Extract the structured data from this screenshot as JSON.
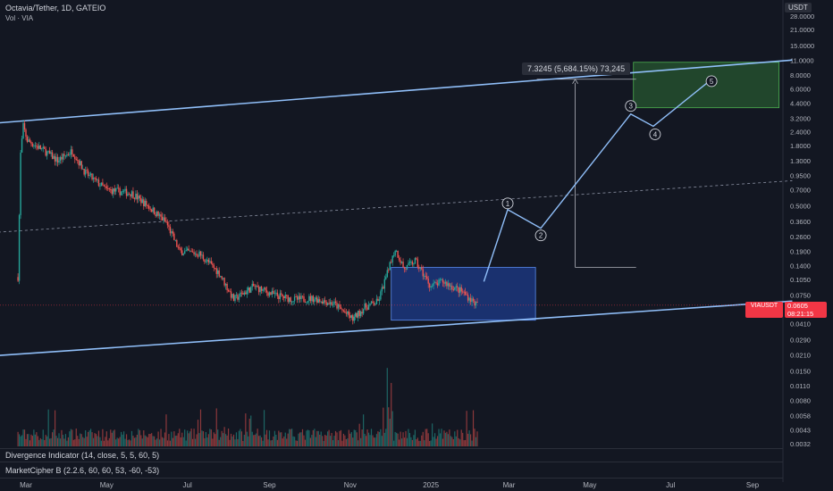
{
  "header": {
    "symbol": "Octavia/Tether, 1D, GATEIO",
    "volume": "Vol · VIA"
  },
  "currency_badge": "USDT",
  "last_price": {
    "symbol": "VIAUSDT",
    "price": "0.0605",
    "countdown": "08:21:15",
    "color": "#f23645"
  },
  "colors": {
    "up": "#26a69a",
    "down": "#ef5350",
    "channel": "#90bff9",
    "projection": "#4a8fe0"
  },
  "target_label": "7.3245 (5,684.15%) 73,245",
  "indicators": [
    "Divergence Indicator (14, close, 5, 5, 60, 5)",
    "MarketCipher B (2.2.6, 60, 60, 53, -60, -53)"
  ],
  "chart_data": {
    "type": "candlestick",
    "title": "Octavia/Tether, 1D, GATEIO",
    "y_scale": "log",
    "y_ticks": [
      "28.0000",
      "21.0000",
      "15.0000",
      "11.0000",
      "8.0000",
      "6.0000",
      "4.4000",
      "3.2000",
      "2.4000",
      "1.8000",
      "1.3000",
      "0.9500",
      "0.7000",
      "0.5000",
      "0.3600",
      "0.2600",
      "0.1900",
      "0.1400",
      "0.1050",
      "0.0750",
      "0.0560",
      "0.0410",
      "0.0290",
      "0.0210",
      "0.0150",
      "0.0110",
      "0.0080",
      "0.0058",
      "0.0043",
      "0.0032"
    ],
    "x_ticks": [
      "Mar",
      "May",
      "Jul",
      "Sep",
      "Nov",
      "2025",
      "Mar",
      "May",
      "Jul",
      "Sep"
    ],
    "price_path": [
      [
        "2024-02-24",
        0.11
      ],
      [
        "2024-02-26",
        1.5
      ],
      [
        "2024-02-28",
        2.7
      ],
      [
        "2024-03-02",
        2.0
      ],
      [
        "2024-03-15",
        1.6
      ],
      [
        "2024-03-25",
        1.3
      ],
      [
        "2024-04-05",
        1.6
      ],
      [
        "2024-04-15",
        1.0
      ],
      [
        "2024-05-01",
        0.7
      ],
      [
        "2024-05-20",
        0.65
      ],
      [
        "2024-06-01",
        0.5
      ],
      [
        "2024-06-15",
        0.35
      ],
      [
        "2024-06-25",
        0.19
      ],
      [
        "2024-07-10",
        0.18
      ],
      [
        "2024-07-25",
        0.12
      ],
      [
        "2024-08-05",
        0.068
      ],
      [
        "2024-08-20",
        0.09
      ],
      [
        "2024-09-05",
        0.075
      ],
      [
        "2024-09-20",
        0.068
      ],
      [
        "2024-10-05",
        0.07
      ],
      [
        "2024-10-20",
        0.062
      ],
      [
        "2024-11-03",
        0.045
      ],
      [
        "2024-11-12",
        0.058
      ],
      [
        "2024-11-22",
        0.065
      ],
      [
        "2024-12-01",
        0.14
      ],
      [
        "2024-12-05",
        0.2
      ],
      [
        "2024-12-12",
        0.13
      ],
      [
        "2024-12-20",
        0.155
      ],
      [
        "2025-01-01",
        0.09
      ],
      [
        "2025-01-10",
        0.1
      ],
      [
        "2025-01-25",
        0.08
      ],
      [
        "2025-02-05",
        0.0605
      ]
    ],
    "channel_upper": [
      [
        "2024-02-09",
        2.9
      ],
      [
        "2025-10-01",
        11.0
      ]
    ],
    "channel_lower": [
      [
        "2024-02-09",
        0.0208
      ],
      [
        "2025-10-01",
        0.066
      ]
    ],
    "channel_mid": [
      [
        "2024-02-09",
        0.285
      ],
      [
        "2025-10-01",
        0.85
      ]
    ],
    "wave_projection": [
      {
        "label": "",
        "date": "2025-02-10",
        "price": 0.1
      },
      {
        "label": "1",
        "date": "2025-02-28",
        "price": 0.46
      },
      {
        "label": "2",
        "date": "2025-03-25",
        "price": 0.31
      },
      {
        "label": "3",
        "date": "2025-06-01",
        "price": 3.5
      },
      {
        "label": "4",
        "date": "2025-06-18",
        "price": 2.7
      },
      {
        "label": "5",
        "date": "2025-08-01",
        "price": 7.3
      }
    ],
    "consolidation_box": {
      "from": "2024-12-02",
      "to": "2025-03-21",
      "low": 0.044,
      "high": 0.135
    },
    "target_box": {
      "from": "2025-06-03",
      "to": "2025-09-21",
      "low": 4.0,
      "high": 10.5
    },
    "measure_arrow": {
      "date": "2025-04-20",
      "from": 0.135,
      "to": 7.3245
    }
  }
}
